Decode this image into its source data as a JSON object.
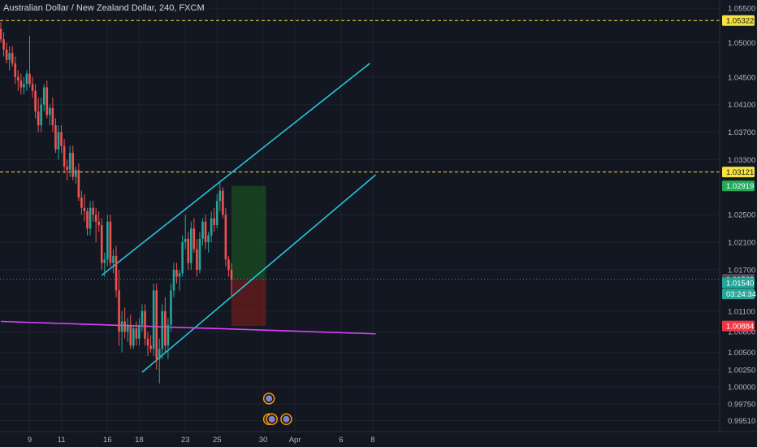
{
  "title": "Australian Dollar / New Zealand Dollar, 240, FXCM",
  "colors": {
    "background": "#131722",
    "grid": "#1e222d",
    "text": "#b2b5be",
    "bull": "#26a69a",
    "bear": "#ef5350",
    "channel": "#26c6da",
    "support": "#e040fb",
    "level_line": "#f5e23c",
    "target_zone": "#1b5e20",
    "stop_zone": "#7f1d1d"
  },
  "chart_data": {
    "type": "candlestick",
    "ylim": [
      0.9935,
      1.0562
    ],
    "y_ticks": [
      "1.05500",
      "1.05000",
      "1.04500",
      "1.04100",
      "1.03700",
      "1.03300",
      "1.02500",
      "1.02100",
      "1.01700",
      "1.01100",
      "1.00800",
      "1.00500",
      "1.00250",
      "1.00000",
      "0.99750",
      "0.99510"
    ],
    "x_ticks": [
      {
        "label": "9",
        "index": 10
      },
      {
        "label": "11",
        "index": 21
      },
      {
        "label": "16",
        "index": 37
      },
      {
        "label": "18",
        "index": 48
      },
      {
        "label": "23",
        "index": 64
      },
      {
        "label": "25",
        "index": 75
      },
      {
        "label": "30",
        "index": 91
      },
      {
        "label": "Apr",
        "index": 102
      },
      {
        "label": "6",
        "index": 118
      },
      {
        "label": "8",
        "index": 129
      }
    ],
    "candles": [
      [
        1.052,
        1.053,
        1.05,
        1.0505
      ],
      [
        1.0505,
        1.0515,
        1.048,
        1.049
      ],
      [
        1.049,
        1.05,
        1.047,
        1.0475
      ],
      [
        1.0475,
        1.0495,
        1.046,
        1.0485
      ],
      [
        1.0485,
        1.0495,
        1.0465,
        1.047
      ],
      [
        1.047,
        1.048,
        1.044,
        1.045
      ],
      [
        1.045,
        1.046,
        1.043,
        1.0445
      ],
      [
        1.0445,
        1.0455,
        1.0425,
        1.0435
      ],
      [
        1.0435,
        1.045,
        1.0425,
        1.044
      ],
      [
        1.044,
        1.046,
        1.043,
        1.0455
      ],
      [
        1.0455,
        1.051,
        1.0435,
        1.044
      ],
      [
        1.044,
        1.045,
        1.042,
        1.043
      ],
      [
        1.043,
        1.044,
        1.039,
        1.04
      ],
      [
        1.04,
        1.042,
        1.037,
        1.038
      ],
      [
        1.038,
        1.042,
        1.037,
        1.041
      ],
      [
        1.041,
        1.044,
        1.04,
        1.0435
      ],
      [
        1.0435,
        1.0445,
        1.039,
        1.0395
      ],
      [
        1.0395,
        1.041,
        1.038,
        1.0405
      ],
      [
        1.0405,
        1.042,
        1.037,
        1.038
      ],
      [
        1.038,
        1.039,
        1.034,
        1.0345
      ],
      [
        1.0345,
        1.038,
        1.033,
        1.037
      ],
      [
        1.037,
        1.038,
        1.034,
        1.035
      ],
      [
        1.035,
        1.036,
        1.031,
        1.032
      ],
      [
        1.032,
        1.033,
        1.03,
        1.0315
      ],
      [
        1.0315,
        1.035,
        1.0305,
        1.034
      ],
      [
        1.034,
        1.035,
        1.03,
        1.0305
      ],
      [
        1.0305,
        1.032,
        1.0295,
        1.0315
      ],
      [
        1.0315,
        1.0325,
        1.027,
        1.0275
      ],
      [
        1.0275,
        1.0285,
        1.025,
        1.026
      ],
      [
        1.026,
        1.028,
        1.024,
        1.0255
      ],
      [
        1.0255,
        1.026,
        1.022,
        1.023
      ],
      [
        1.023,
        1.027,
        1.022,
        1.026
      ],
      [
        1.026,
        1.027,
        1.024,
        1.025
      ],
      [
        1.025,
        1.026,
        1.021,
        1.024
      ],
      [
        1.024,
        1.0255,
        1.0225,
        1.0235
      ],
      [
        1.0235,
        1.0245,
        1.017,
        1.018
      ],
      [
        1.018,
        1.0195,
        1.016,
        1.0185
      ],
      [
        1.0185,
        1.025,
        1.0175,
        1.024
      ],
      [
        1.024,
        1.025,
        1.0175,
        1.018
      ],
      [
        1.018,
        1.02,
        1.0165,
        1.019
      ],
      [
        1.019,
        1.0205,
        1.013,
        1.014
      ],
      [
        1.014,
        1.017,
        1.006,
        1.008
      ],
      [
        1.008,
        1.011,
        1.005,
        1.0095
      ],
      [
        1.0095,
        1.0115,
        1.007,
        1.008
      ],
      [
        1.008,
        1.01,
        1.0065,
        1.009
      ],
      [
        1.009,
        1.0105,
        1.0055,
        1.006
      ],
      [
        1.006,
        1.009,
        1.0055,
        1.0085
      ],
      [
        1.0085,
        1.0095,
        1.006,
        1.007
      ],
      [
        1.007,
        1.01,
        1.006,
        1.009
      ],
      [
        1.009,
        1.012,
        1.008,
        1.011
      ],
      [
        1.011,
        1.012,
        1.006,
        1.007
      ],
      [
        1.007,
        1.008,
        1.0045,
        1.006
      ],
      [
        1.006,
        1.0075,
        1.005,
        1.0055
      ],
      [
        1.0055,
        1.015,
        1.0045,
        1.014
      ],
      [
        1.014,
        1.015,
        1.0025,
        1.004
      ],
      [
        1.004,
        1.007,
        1.0005,
        1.0055
      ],
      [
        1.0055,
        1.012,
        1.004,
        1.011
      ],
      [
        1.011,
        1.013,
        1.005,
        1.006
      ],
      [
        1.006,
        1.01,
        1.004,
        1.009
      ],
      [
        1.009,
        1.015,
        1.008,
        1.014
      ],
      [
        1.014,
        1.018,
        1.013,
        1.017
      ],
      [
        1.017,
        1.018,
        1.015,
        1.016
      ],
      [
        1.016,
        1.017,
        1.014,
        1.0165
      ],
      [
        1.0165,
        1.022,
        1.016,
        1.021
      ],
      [
        1.021,
        1.025,
        1.02,
        1.0215
      ],
      [
        1.0215,
        1.0225,
        1.017,
        1.018
      ],
      [
        1.018,
        1.024,
        1.017,
        1.023
      ],
      [
        1.023,
        1.0245,
        1.0195,
        1.02
      ],
      [
        1.02,
        1.0215,
        1.016,
        1.017
      ],
      [
        1.017,
        1.0225,
        1.0165,
        1.0215
      ],
      [
        1.0215,
        1.0245,
        1.0205,
        1.024
      ],
      [
        1.024,
        1.025,
        1.02,
        1.021
      ],
      [
        1.021,
        1.0225,
        1.0195,
        1.022
      ],
      [
        1.022,
        1.0255,
        1.021,
        1.0245
      ],
      [
        1.0245,
        1.026,
        1.0225,
        1.0235
      ],
      [
        1.0235,
        1.028,
        1.023,
        1.027
      ],
      [
        1.027,
        1.03,
        1.0255,
        1.0285
      ],
      [
        1.0285,
        1.029,
        1.0245,
        1.025
      ],
      [
        1.025,
        1.026,
        1.0175,
        1.0185
      ],
      [
        1.0185,
        1.019,
        1.016,
        1.017
      ],
      [
        1.017,
        1.018,
        1.013,
        1.0155
      ]
    ],
    "channel_upper": [
      [
        35,
        1.0162
      ],
      [
        128,
        1.047
      ]
    ],
    "channel_lower": [
      [
        49,
        1.0021
      ],
      [
        130,
        1.0308
      ]
    ],
    "support_line": [
      [
        0,
        1.0095
      ],
      [
        130,
        1.0077
      ]
    ],
    "levels": [
      {
        "price": 1.05322,
        "label": "1.05322",
        "color": "#f5e23c"
      },
      {
        "price": 1.03121,
        "label": "1.03121",
        "color": "#f5e23c"
      }
    ],
    "position": {
      "start": 80,
      "end": 92,
      "entry": 1.01563,
      "target": 1.02919,
      "stop": 1.00884
    },
    "price_labels": [
      {
        "text": "1.05322",
        "price": 1.05322,
        "bg": "#f5e23c",
        "fg": "#131722"
      },
      {
        "text": "1.03121",
        "price": 1.03121,
        "bg": "#f5e23c",
        "fg": "#131722"
      },
      {
        "text": "1.02919",
        "price": 1.02919,
        "bg": "#22ab58",
        "fg": "#ffffff"
      },
      {
        "text": "1.01563",
        "price": 1.01563,
        "bg": "#4a4e59",
        "fg": "#ffffff"
      },
      {
        "text": "1.01540",
        "price": 1.0151,
        "bg": "#26a69a",
        "fg": "#ffffff"
      },
      {
        "text": "03:24:34",
        "price": 1.0135,
        "bg": "#26a69a",
        "fg": "#ffffff"
      },
      {
        "text": "1.00884",
        "price": 1.00884,
        "bg": "#f23645",
        "fg": "#ffffff"
      }
    ],
    "events": [
      [
        93,
        0.9983
      ],
      [
        93,
        0.9953
      ],
      [
        94,
        0.9953
      ],
      [
        99,
        0.9953
      ]
    ]
  }
}
